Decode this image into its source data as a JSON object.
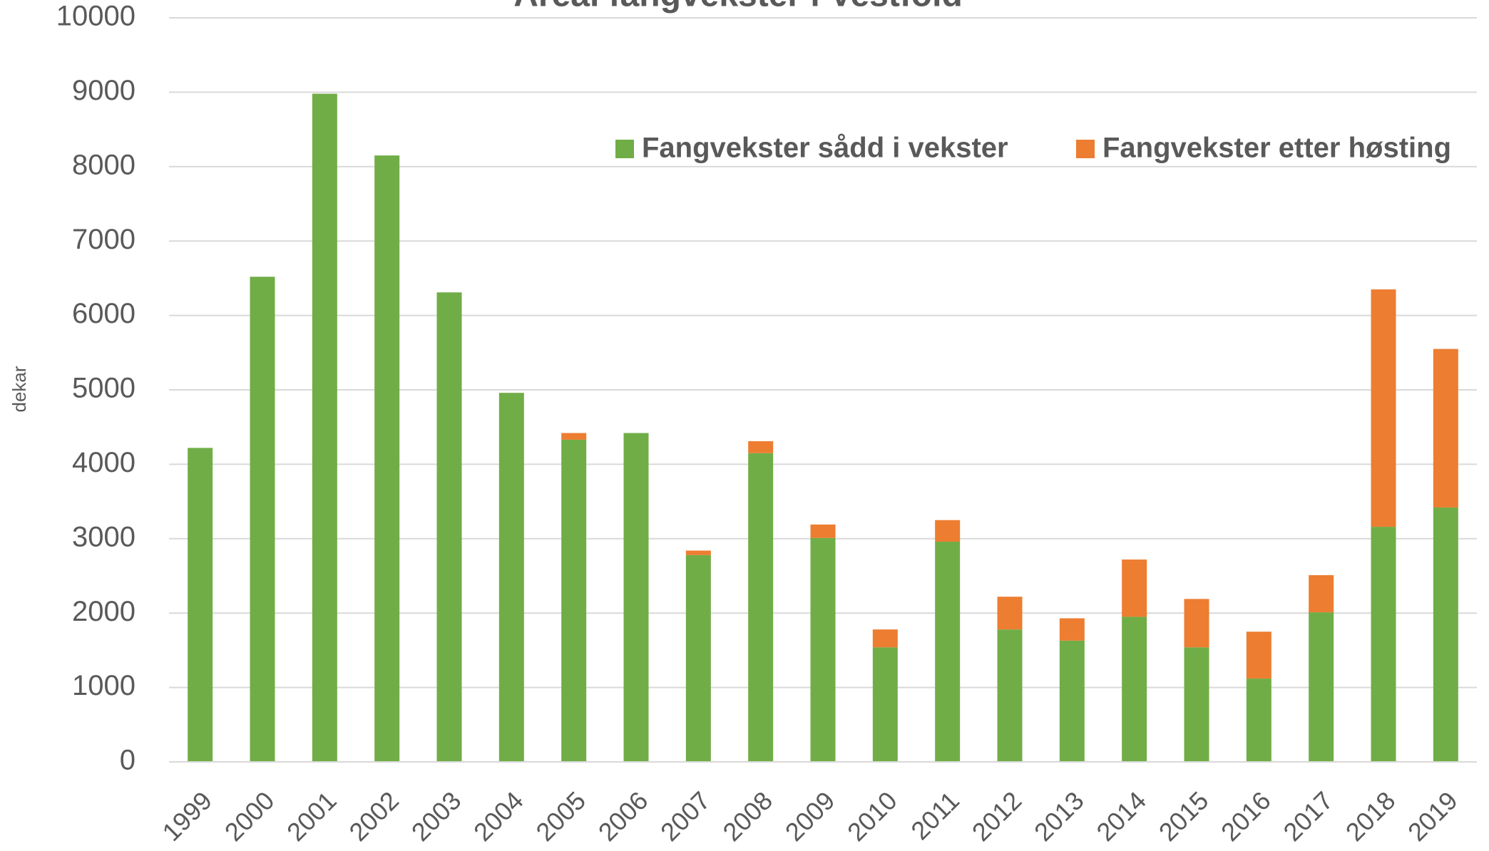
{
  "chart_data": {
    "type": "stacked_bar",
    "title": "Areal fangvekster i Vestfold",
    "y_label": "dekar",
    "categories": [
      "1999",
      "2000",
      "2001",
      "2002",
      "2003",
      "2004",
      "2005",
      "2006",
      "2007",
      "2008",
      "2009",
      "2010",
      "2011",
      "2012",
      "2013",
      "2014",
      "2015",
      "2016",
      "2017",
      "2018",
      "2019"
    ],
    "series": [
      {
        "name": "Fangvekster sådd i vekster",
        "color": "#70ad47",
        "values": [
          4220,
          6520,
          8980,
          8150,
          6310,
          4960,
          4330,
          4420,
          2780,
          4150,
          3010,
          1540,
          2960,
          1780,
          1630,
          1950,
          1540,
          1120,
          2010,
          3160,
          3420
        ]
      },
      {
        "name": "Fangvekster etter høsting",
        "color": "#ed7d31",
        "values": [
          0,
          0,
          0,
          0,
          0,
          0,
          90,
          0,
          60,
          160,
          180,
          240,
          290,
          440,
          300,
          770,
          650,
          630,
          500,
          3190,
          2130
        ]
      }
    ],
    "ylim": [
      0,
      10000
    ],
    "yticks": [
      0,
      1000,
      2000,
      3000,
      4000,
      5000,
      6000,
      7000,
      8000,
      9000,
      10000
    ],
    "grid": true
  }
}
